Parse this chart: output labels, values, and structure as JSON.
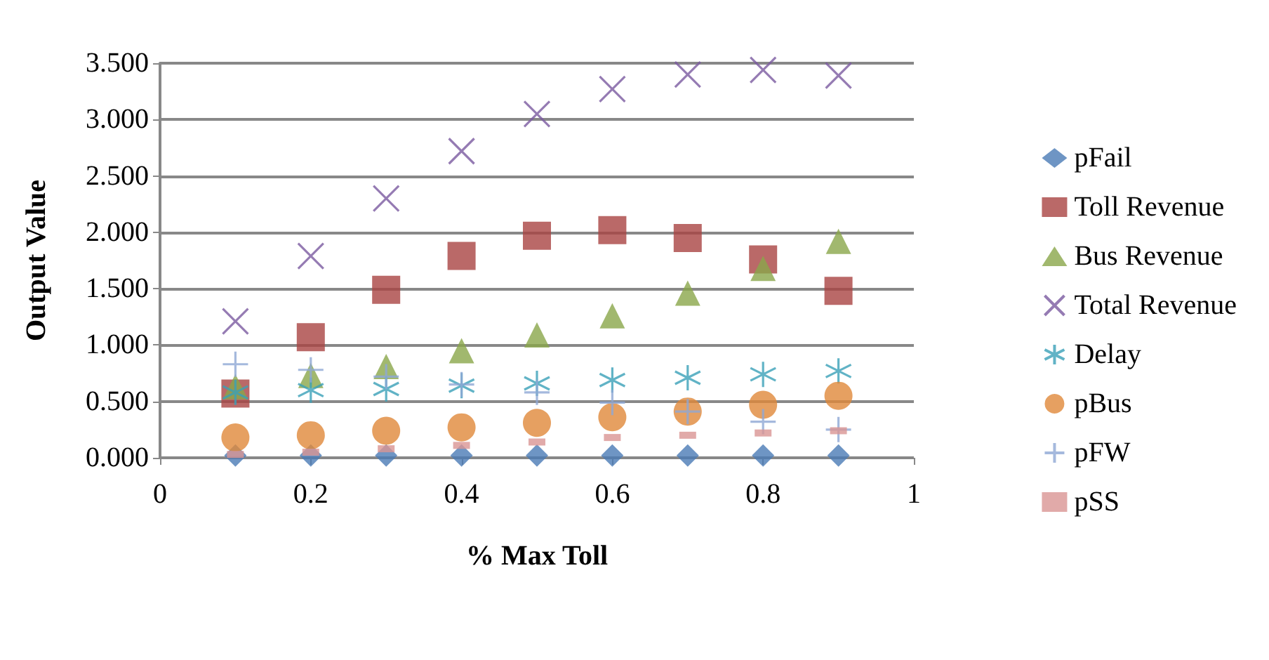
{
  "chart_data": {
    "type": "scatter",
    "xlabel": "% Max Toll",
    "ylabel": "Output Value",
    "x": [
      0.1,
      0.2,
      0.3,
      0.4,
      0.5,
      0.6,
      0.7,
      0.8,
      0.9
    ],
    "series": [
      {
        "name": "pFail",
        "color": "#4a7ab5",
        "marker": "diamond",
        "values": [
          0.02,
          0.02,
          0.02,
          0.02,
          0.02,
          0.02,
          0.02,
          0.02,
          0.02
        ]
      },
      {
        "name": "Toll Revenue",
        "color": "#a94442",
        "marker": "square",
        "values": [
          0.57,
          1.07,
          1.49,
          1.79,
          1.97,
          2.02,
          1.95,
          1.76,
          1.48
        ]
      },
      {
        "name": "Bus Revenue",
        "color": "#8aa64a",
        "marker": "triangle",
        "values": [
          0.63,
          0.73,
          0.81,
          0.95,
          1.09,
          1.26,
          1.46,
          1.68,
          1.92
        ]
      },
      {
        "name": "Total Revenue",
        "color": "#7b5aa0",
        "marker": "cross",
        "values": [
          1.21,
          1.79,
          2.3,
          2.72,
          3.05,
          3.27,
          3.4,
          3.44,
          3.39
        ]
      },
      {
        "name": "Delay",
        "color": "#3aa0b8",
        "values": [
          0.58,
          0.6,
          0.61,
          0.64,
          0.66,
          0.69,
          0.71,
          0.74,
          0.77
        ]
      },
      {
        "name": "pBus",
        "color": "#e0883a",
        "marker": "circle",
        "values": [
          0.18,
          0.2,
          0.24,
          0.27,
          0.31,
          0.36,
          0.41,
          0.47,
          0.55
        ]
      },
      {
        "name": "pFW",
        "color": "#8fa8d4",
        "marker": "plus",
        "values": [
          0.83,
          0.78,
          0.72,
          0.65,
          0.58,
          0.49,
          0.41,
          0.32,
          0.25
        ]
      },
      {
        "name": "pSS",
        "color": "#d99594",
        "values": [
          0.03,
          0.05,
          0.08,
          0.11,
          0.14,
          0.18,
          0.2,
          0.22,
          0.24
        ]
      }
    ],
    "xlim": [
      0,
      1
    ],
    "xticks": [
      0,
      0.2,
      0.4,
      0.6,
      0.8,
      1
    ],
    "ylim": [
      0,
      3.5
    ],
    "yticks": [
      {
        "value": 0,
        "label": "0.000"
      },
      {
        "value": 0.5,
        "label": "0.500"
      },
      {
        "value": 1,
        "label": "1.000"
      },
      {
        "value": 1.5,
        "label": "1.500"
      },
      {
        "value": 2,
        "label": "2.000"
      },
      {
        "value": 2.5,
        "label": "2.500"
      },
      {
        "value": 3,
        "label": "3.000"
      },
      {
        "value": 3.5,
        "label": "3.500"
      }
    ],
    "grid": "y",
    "legend": "right"
  }
}
